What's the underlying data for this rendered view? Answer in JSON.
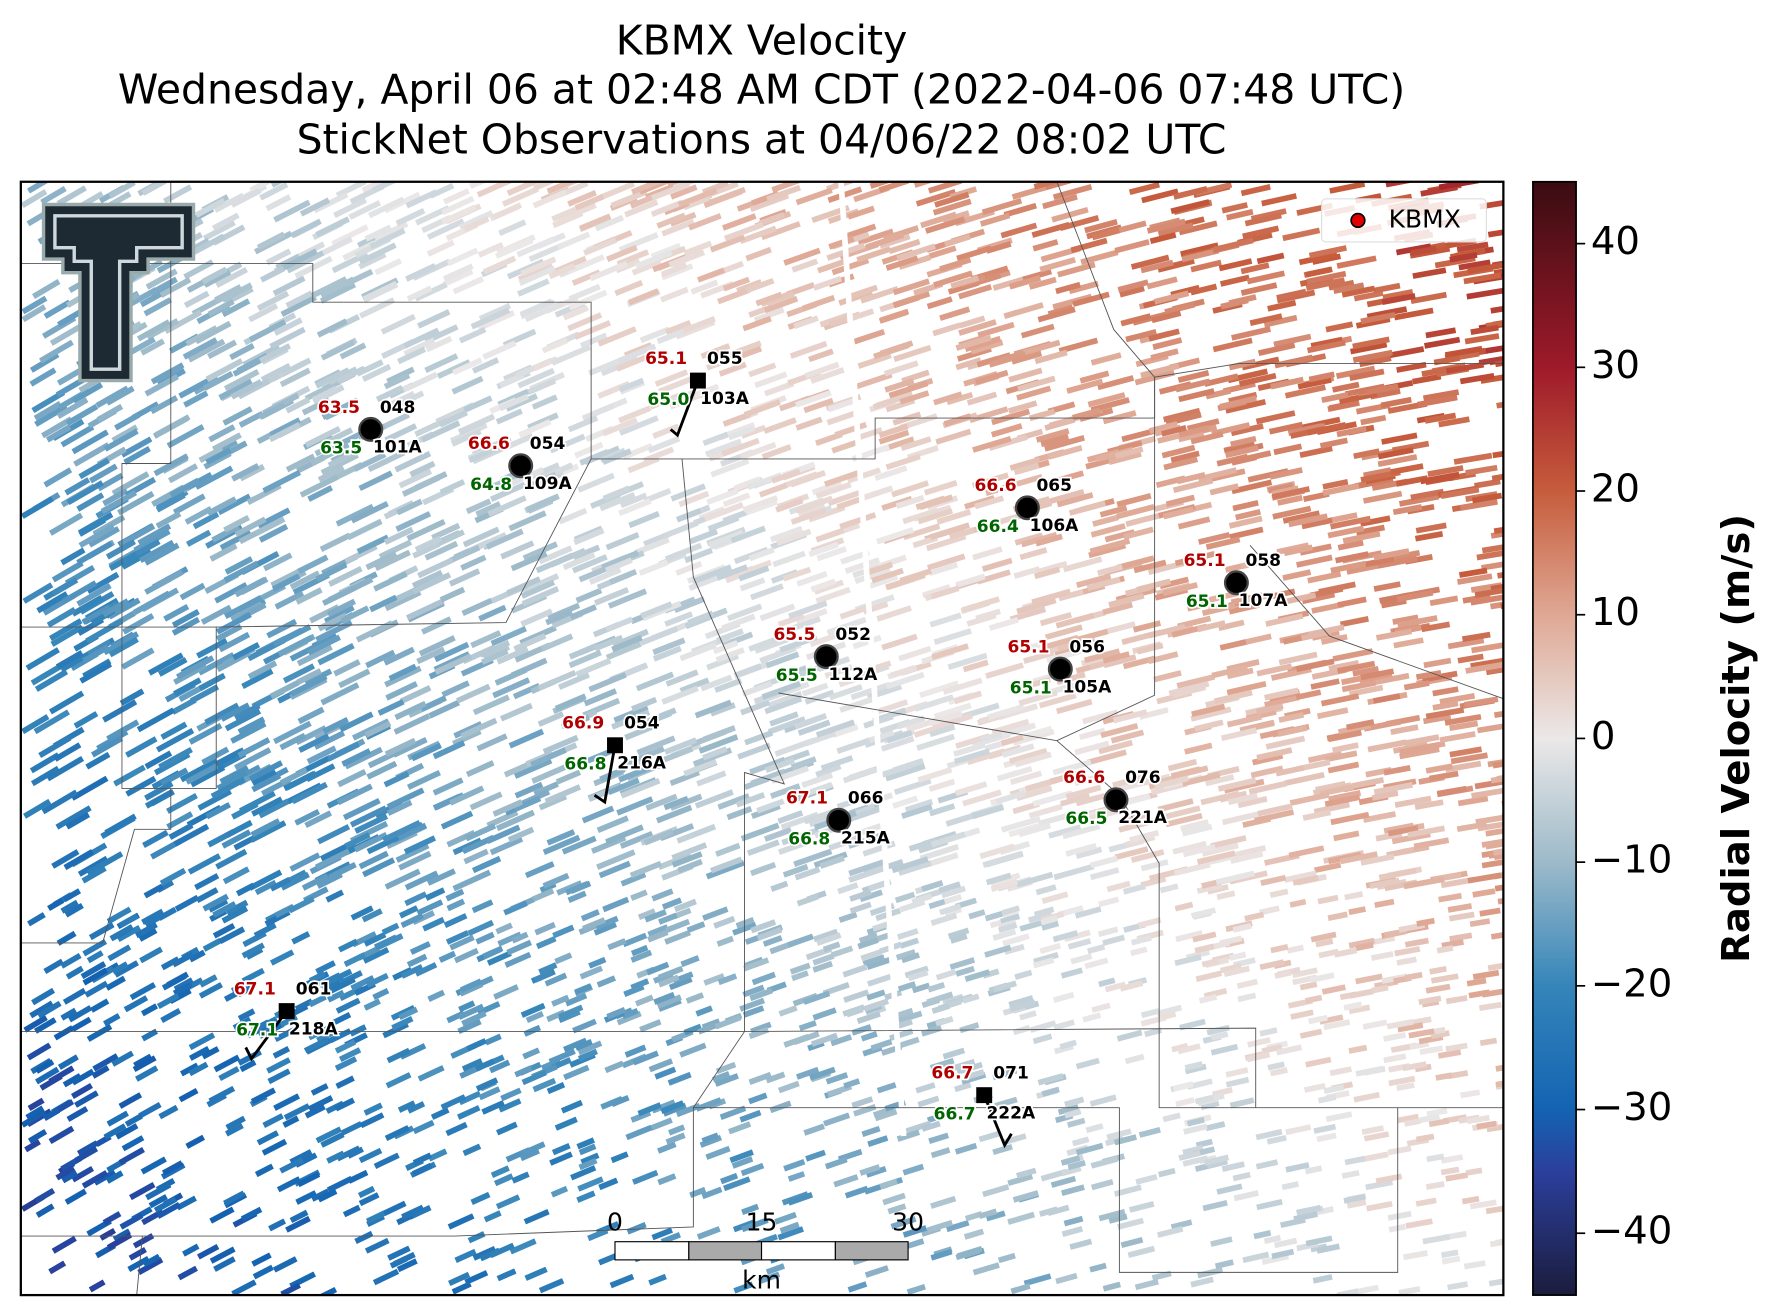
{
  "title": [
    "KBMX Velocity",
    "Wednesday, April 06 at 02:48 AM CDT (2022-04-06 07:48 UTC)",
    "StickNet Observations at 04/06/22 08:02 UTC"
  ],
  "legend": {
    "label": "KBMX",
    "color": "#e00000"
  },
  "colorbar": {
    "label": "Radial Velocity (m/s)",
    "lim": [
      -45,
      45
    ],
    "ticks": [
      40,
      30,
      20,
      10,
      0,
      {
        "value": -10,
        "label": "−10"
      },
      {
        "value": -20,
        "label": "−20"
      },
      {
        "value": -30,
        "label": "−30"
      },
      {
        "value": -40,
        "label": "−40"
      }
    ],
    "stops": [
      {
        "value": -45,
        "color": "#1b1d3d"
      },
      {
        "value": -35,
        "color": "#2b3f9c"
      },
      {
        "value": -30,
        "color": "#1463b2"
      },
      {
        "value": -20,
        "color": "#3585ba"
      },
      {
        "value": -10,
        "color": "#9dbac9"
      },
      {
        "value": 0,
        "color": "#ebe8e8"
      },
      {
        "value": 10,
        "color": "#dfa894"
      },
      {
        "value": 20,
        "color": "#c65c3c"
      },
      {
        "value": 30,
        "color": "#9e1a2a"
      },
      {
        "value": 45,
        "color": "#3a0c12"
      }
    ]
  },
  "scale_bar": {
    "ticks": [
      "0",
      "15",
      "30"
    ],
    "unit": "km"
  },
  "stations": [
    {
      "temp": "63.5",
      "dewpoint": "63.5",
      "code": "048",
      "id": "101A",
      "marker": "circle"
    },
    {
      "temp": "66.6",
      "dewpoint": "64.8",
      "code": "054",
      "id": "109A",
      "marker": "circle"
    },
    {
      "temp": "65.1",
      "dewpoint": "65.0",
      "code": "055",
      "id": "103A",
      "marker": "square"
    },
    {
      "temp": "66.6",
      "dewpoint": "66.4",
      "code": "065",
      "id": "106A",
      "marker": "circle"
    },
    {
      "temp": "65.1",
      "dewpoint": "65.1",
      "code": "058",
      "id": "107A",
      "marker": "circle"
    },
    {
      "temp": "65.5",
      "dewpoint": "65.5",
      "code": "052",
      "id": "112A",
      "marker": "circle"
    },
    {
      "temp": "65.1",
      "dewpoint": "65.1",
      "code": "056",
      "id": "105A",
      "marker": "circle"
    },
    {
      "temp": "66.9",
      "dewpoint": "66.8",
      "code": "054",
      "id": "216A",
      "marker": "square"
    },
    {
      "temp": "66.6",
      "dewpoint": "66.5",
      "code": "076",
      "id": "221A",
      "marker": "circle"
    },
    {
      "temp": "67.1",
      "dewpoint": "66.8",
      "code": "066",
      "id": "215A",
      "marker": "circle"
    },
    {
      "temp": "67.1",
      "dewpoint": "67.1",
      "code": "061",
      "id": "218A",
      "marker": "square"
    },
    {
      "temp": "66.7",
      "dewpoint": "66.7",
      "code": "071",
      "id": "222A",
      "marker": "square"
    }
  ]
}
